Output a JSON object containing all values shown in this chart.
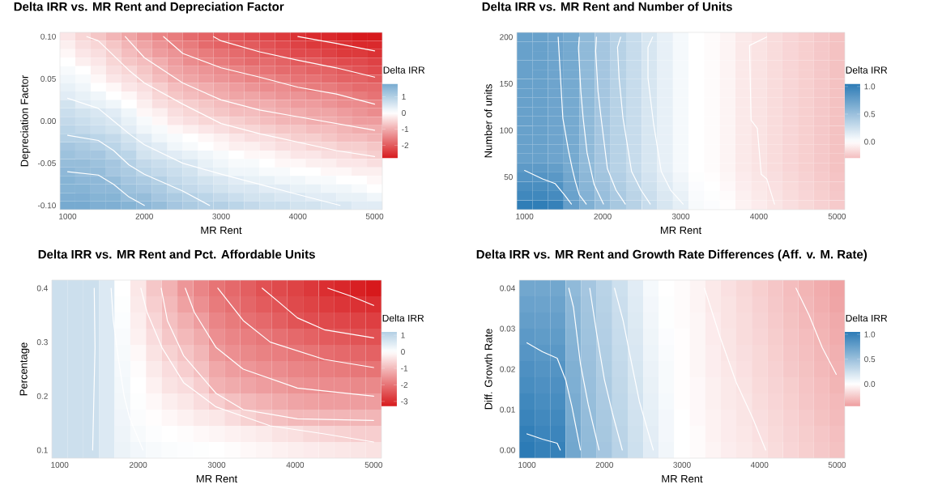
{
  "chart_data": [
    {
      "type": "heatmap",
      "title": "Delta IRR vs. MR Rent and Depreciation Factor",
      "xlabel": "MR Rent",
      "ylabel": "Depreciation Factor",
      "clabel": "Delta IRR",
      "x": [
        1000,
        1200,
        1400,
        1600,
        1800,
        2000,
        2200,
        2400,
        2600,
        2800,
        3000,
        3200,
        3400,
        3600,
        3800,
        4000,
        4200,
        4400,
        4600,
        4800,
        5000
      ],
      "xlim": [
        900,
        5100
      ],
      "ylim": [
        -0.105,
        0.105
      ],
      "xticks": [
        1000,
        2000,
        3000,
        4000,
        5000
      ],
      "yticks": [
        {
          "value": -0.1,
          "label": "-0.10"
        },
        {
          "value": -0.05,
          "label": "-0.05"
        },
        {
          "value": 0,
          "label": "0.00"
        },
        {
          "value": 0.05,
          "label": "0.05"
        },
        {
          "value": 0.1,
          "label": "0.10"
        }
      ],
      "clim": [
        -2.8,
        1.8
      ],
      "cticks": [
        -2,
        -1,
        0,
        1
      ],
      "cells": [
        [
          -0.3,
          -0.5,
          -0.7,
          -0.9,
          -1.1,
          -1.3,
          -1.5,
          -1.6,
          -1.8,
          -1.9,
          -2.0,
          -2.1,
          -2.2,
          -2.3,
          -2.4,
          -2.5,
          -2.6,
          -2.6,
          -2.7,
          -2.8,
          -2.8
        ],
        [
          -0.2,
          -0.4,
          -0.5,
          -0.7,
          -0.9,
          -1.1,
          -1.3,
          -1.5,
          -1.6,
          -1.8,
          -1.9,
          -2.0,
          -2.0,
          -2.1,
          -2.2,
          -2.3,
          -2.4,
          -2.4,
          -2.5,
          -2.6,
          -2.6
        ],
        [
          -0.1,
          -0.3,
          -0.4,
          -0.6,
          -0.8,
          -1.0,
          -1.2,
          -1.3,
          -1.5,
          -1.6,
          -1.7,
          -1.8,
          -1.9,
          -2.0,
          -2.1,
          -2.2,
          -2.2,
          -2.3,
          -2.4,
          -2.4,
          -2.5
        ],
        [
          0.0,
          -0.2,
          -0.3,
          -0.5,
          -0.7,
          -0.8,
          -1.0,
          -1.2,
          -1.4,
          -1.5,
          -1.6,
          -1.7,
          -1.8,
          -1.8,
          -1.9,
          -2.0,
          -2.0,
          -2.1,
          -2.2,
          -2.2,
          -2.3
        ],
        [
          0.1,
          0.0,
          -0.2,
          -0.4,
          -0.5,
          -0.7,
          -0.9,
          -1.1,
          -1.2,
          -1.3,
          -1.4,
          -1.5,
          -1.6,
          -1.7,
          -1.8,
          -1.8,
          -1.9,
          -1.9,
          -2.0,
          -2.1,
          -2.2
        ],
        [
          0.2,
          0.1,
          -0.1,
          -0.3,
          -0.4,
          -0.6,
          -0.8,
          -1.0,
          -1.1,
          -1.2,
          -1.3,
          -1.4,
          -1.5,
          -1.5,
          -1.6,
          -1.7,
          -1.7,
          -1.8,
          -1.9,
          -1.9,
          -2.0
        ],
        [
          0.3,
          0.2,
          0.0,
          -0.1,
          -0.3,
          -0.4,
          -0.6,
          -0.8,
          -0.9,
          -1.0,
          -1.1,
          -1.2,
          -1.3,
          -1.4,
          -1.4,
          -1.5,
          -1.6,
          -1.6,
          -1.7,
          -1.8,
          -1.8
        ],
        [
          0.4,
          0.3,
          0.2,
          0.0,
          -0.1,
          -0.3,
          -0.5,
          -0.7,
          -0.8,
          -0.9,
          -1.0,
          -1.1,
          -1.1,
          -1.2,
          -1.3,
          -1.3,
          -1.4,
          -1.4,
          -1.5,
          -1.6,
          -1.7
        ],
        [
          0.6,
          0.4,
          0.3,
          0.2,
          0.0,
          -0.2,
          -0.4,
          -0.5,
          -0.6,
          -0.7,
          -0.8,
          -0.9,
          -1.0,
          -1.0,
          -1.1,
          -1.2,
          -1.2,
          -1.3,
          -1.4,
          -1.4,
          -1.5
        ],
        [
          0.7,
          0.6,
          0.5,
          0.4,
          0.2,
          -0.1,
          -0.2,
          -0.4,
          -0.5,
          -0.6,
          -0.7,
          -0.8,
          -0.8,
          -0.9,
          -1.0,
          -1.0,
          -1.1,
          -1.1,
          -1.2,
          -1.3,
          -1.4
        ],
        [
          0.8,
          0.7,
          0.6,
          0.5,
          0.3,
          0.1,
          -0.1,
          -0.3,
          -0.4,
          -0.5,
          -0.5,
          -0.6,
          -0.7,
          -0.8,
          -0.9,
          -0.9,
          -1.0,
          -1.0,
          -1.1,
          -1.2,
          -1.2
        ],
        [
          0.9,
          0.8,
          0.7,
          0.6,
          0.4,
          0.2,
          0.1,
          -0.1,
          -0.2,
          -0.3,
          -0.4,
          -0.5,
          -0.5,
          -0.6,
          -0.7,
          -0.7,
          -0.8,
          -0.8,
          -0.9,
          -1.0,
          -1.0
        ],
        [
          1.0,
          1.0,
          0.9,
          0.8,
          0.6,
          0.4,
          0.2,
          0.1,
          0.0,
          -0.1,
          -0.2,
          -0.3,
          -0.4,
          -0.4,
          -0.5,
          -0.6,
          -0.6,
          -0.7,
          -0.8,
          -0.8,
          -0.9
        ],
        [
          1.2,
          1.1,
          1.0,
          0.9,
          0.7,
          0.5,
          0.4,
          0.2,
          0.1,
          0.0,
          -0.1,
          -0.2,
          -0.2,
          -0.3,
          -0.4,
          -0.4,
          -0.5,
          -0.5,
          -0.6,
          -0.6,
          -0.7
        ],
        [
          1.3,
          1.2,
          1.2,
          1.0,
          0.9,
          0.6,
          0.5,
          0.4,
          0.3,
          0.2,
          0.1,
          0.0,
          -0.1,
          -0.1,
          -0.2,
          -0.3,
          -0.3,
          -0.4,
          -0.4,
          -0.5,
          -0.6
        ],
        [
          1.4,
          1.4,
          1.3,
          1.2,
          1.0,
          0.8,
          0.7,
          0.6,
          0.5,
          0.3,
          0.2,
          0.1,
          0.1,
          0.0,
          -0.1,
          -0.1,
          -0.2,
          -0.2,
          -0.3,
          -0.3,
          -0.4
        ],
        [
          1.5,
          1.4,
          1.4,
          1.2,
          1.1,
          0.9,
          0.8,
          0.7,
          0.6,
          0.4,
          0.3,
          0.2,
          0.2,
          0.1,
          0.1,
          0.0,
          0.0,
          -0.1,
          -0.1,
          -0.2,
          -0.2
        ],
        [
          1.6,
          1.5,
          1.5,
          1.4,
          1.2,
          1.1,
          1.0,
          0.8,
          0.7,
          0.6,
          0.5,
          0.4,
          0.3,
          0.3,
          0.2,
          0.2,
          0.1,
          0.1,
          0.0,
          0.0,
          -0.1
        ],
        [
          1.6,
          1.6,
          1.5,
          1.5,
          1.3,
          1.2,
          1.1,
          0.9,
          0.8,
          0.7,
          0.6,
          0.5,
          0.5,
          0.4,
          0.4,
          0.3,
          0.3,
          0.2,
          0.2,
          0.1,
          0.0
        ],
        [
          1.7,
          1.7,
          1.6,
          1.6,
          1.4,
          1.4,
          1.2,
          1.1,
          1.0,
          0.9,
          0.8,
          0.7,
          0.6,
          0.6,
          0.5,
          0.5,
          0.4,
          0.4,
          0.3,
          0.3,
          0.2
        ],
        [
          1.8,
          1.8,
          1.7,
          1.7,
          1.6,
          1.5,
          1.4,
          1.2,
          1.1,
          1.0,
          1.0,
          0.9,
          0.8,
          0.7,
          0.7,
          0.6,
          0.6,
          0.5,
          0.5,
          0.4,
          0.4
        ]
      ],
      "series": [
        {
          "type": "line",
          "color": "#ffffff",
          "x": [
            4000,
            4500,
            5000
          ],
          "values": [
            0.1,
            0.092,
            0.083
          ]
        },
        {
          "type": "line",
          "color": "#ffffff",
          "x": [
            2900,
            3000,
            3500,
            4000,
            4500,
            5000
          ],
          "values": [
            0.1,
            0.095,
            0.082,
            0.072,
            0.063,
            0.052
          ]
        },
        {
          "type": "line",
          "color": "#ffffff",
          "x": [
            2250,
            2500,
            3000,
            3500,
            4000,
            4500,
            5000
          ],
          "values": [
            0.1,
            0.08,
            0.063,
            0.052,
            0.04,
            0.032,
            0.02
          ]
        },
        {
          "type": "line",
          "color": "#ffffff",
          "x": [
            1750,
            2000,
            2500,
            3000,
            3500,
            4000,
            4500,
            5000
          ],
          "values": [
            0.1,
            0.075,
            0.045,
            0.025,
            0.013,
            0.005,
            -0.003,
            -0.011
          ]
        },
        {
          "type": "line",
          "color": "#ffffff",
          "x": [
            1250,
            1400,
            1800,
            2000,
            2500,
            3000,
            3500,
            4000,
            4500,
            5000
          ],
          "values": [
            0.1,
            0.095,
            0.06,
            0.045,
            0.02,
            -0.003,
            -0.015,
            -0.025,
            -0.035,
            -0.042
          ]
        },
        {
          "type": "line",
          "color": "#ffffff",
          "x": [
            1000,
            1400,
            1600,
            1800,
            2000,
            2500,
            3000,
            3500,
            4000,
            4550
          ],
          "values": [
            0.027,
            0.015,
            0.0,
            -0.015,
            -0.028,
            -0.05,
            -0.063,
            -0.075,
            -0.087,
            -0.1
          ]
        },
        {
          "type": "line",
          "color": "#ffffff",
          "x": [
            1000,
            1400,
            1600,
            1800,
            2000,
            2500,
            2850
          ],
          "values": [
            -0.017,
            -0.023,
            -0.035,
            -0.052,
            -0.063,
            -0.083,
            -0.1
          ]
        },
        {
          "type": "line",
          "color": "#ffffff",
          "x": [
            1000,
            1400,
            1600,
            1800,
            2000
          ],
          "values": [
            -0.06,
            -0.064,
            -0.075,
            -0.09,
            -0.1
          ]
        }
      ]
    },
    {
      "type": "heatmap",
      "title": "Delta IRR vs. MR Rent and Number of Units",
      "xlabel": "MR Rent",
      "ylabel": "Number of units",
      "clabel": "Delta IRR",
      "x": [
        1000,
        1200,
        1400,
        1600,
        1800,
        2000,
        2200,
        2400,
        2600,
        2800,
        3000,
        3200,
        3400,
        3600,
        3800,
        4000,
        4200,
        4400,
        4600,
        4800,
        5000
      ],
      "xlim": [
        900,
        5100
      ],
      "ylim": [
        15,
        205
      ],
      "xticks": [
        1000,
        2000,
        3000,
        4000,
        5000
      ],
      "yticks": [
        50,
        100,
        150,
        200
      ],
      "clim": [
        -0.3,
        1.05
      ],
      "cticks": [
        {
          "value": 0,
          "label": "0.0"
        },
        {
          "value": 0.5,
          "label": "0.5"
        },
        {
          "value": 1,
          "label": "1.0"
        }
      ],
      "cells": [
        [
          0.75,
          0.75,
          0.72,
          0.68,
          0.55,
          0.45,
          0.36,
          0.28,
          0.2,
          0.12,
          0.05,
          0.0,
          -0.02,
          -0.05,
          -0.1,
          -0.13,
          -0.16,
          -0.19,
          -0.22,
          -0.25,
          -0.28
        ],
        [
          0.75,
          0.75,
          0.72,
          0.68,
          0.55,
          0.45,
          0.36,
          0.28,
          0.2,
          0.12,
          0.05,
          0.0,
          -0.02,
          -0.05,
          -0.1,
          -0.13,
          -0.16,
          -0.19,
          -0.22,
          -0.25,
          -0.28
        ],
        [
          0.75,
          0.75,
          0.72,
          0.68,
          0.55,
          0.45,
          0.36,
          0.28,
          0.2,
          0.12,
          0.05,
          0.0,
          -0.02,
          -0.05,
          -0.1,
          -0.13,
          -0.16,
          -0.19,
          -0.22,
          -0.25,
          -0.28
        ],
        [
          0.75,
          0.75,
          0.72,
          0.68,
          0.55,
          0.45,
          0.36,
          0.28,
          0.2,
          0.12,
          0.05,
          0.0,
          -0.02,
          -0.05,
          -0.1,
          -0.13,
          -0.16,
          -0.19,
          -0.22,
          -0.25,
          -0.28
        ],
        [
          0.75,
          0.75,
          0.72,
          0.68,
          0.55,
          0.45,
          0.36,
          0.28,
          0.2,
          0.12,
          0.05,
          0.0,
          -0.02,
          -0.05,
          -0.1,
          -0.13,
          -0.16,
          -0.19,
          -0.22,
          -0.25,
          -0.28
        ],
        [
          0.75,
          0.75,
          0.72,
          0.68,
          0.55,
          0.45,
          0.36,
          0.28,
          0.2,
          0.12,
          0.05,
          0.0,
          -0.02,
          -0.05,
          -0.1,
          -0.13,
          -0.16,
          -0.19,
          -0.22,
          -0.25,
          -0.28
        ],
        [
          0.75,
          0.75,
          0.72,
          0.68,
          0.55,
          0.45,
          0.36,
          0.28,
          0.2,
          0.12,
          0.05,
          0.0,
          -0.02,
          -0.05,
          -0.1,
          -0.13,
          -0.16,
          -0.19,
          -0.22,
          -0.25,
          -0.28
        ],
        [
          0.75,
          0.75,
          0.72,
          0.68,
          0.55,
          0.45,
          0.36,
          0.28,
          0.2,
          0.12,
          0.05,
          0.0,
          -0.02,
          -0.05,
          -0.1,
          -0.13,
          -0.16,
          -0.19,
          -0.22,
          -0.25,
          -0.28
        ],
        [
          0.75,
          0.75,
          0.72,
          0.68,
          0.55,
          0.45,
          0.36,
          0.28,
          0.2,
          0.12,
          0.05,
          0.0,
          -0.02,
          -0.05,
          -0.1,
          -0.13,
          -0.16,
          -0.19,
          -0.22,
          -0.25,
          -0.28
        ],
        [
          0.75,
          0.75,
          0.72,
          0.68,
          0.55,
          0.45,
          0.36,
          0.28,
          0.2,
          0.12,
          0.05,
          0.0,
          -0.02,
          -0.05,
          -0.1,
          -0.13,
          -0.16,
          -0.19,
          -0.22,
          -0.25,
          -0.28
        ],
        [
          0.75,
          0.75,
          0.72,
          0.68,
          0.55,
          0.45,
          0.36,
          0.28,
          0.2,
          0.12,
          0.05,
          0.0,
          -0.02,
          -0.05,
          -0.1,
          -0.13,
          -0.16,
          -0.19,
          -0.22,
          -0.25,
          -0.28
        ],
        [
          0.75,
          0.75,
          0.72,
          0.68,
          0.55,
          0.45,
          0.36,
          0.28,
          0.2,
          0.12,
          0.05,
          0.0,
          -0.02,
          -0.05,
          -0.1,
          -0.13,
          -0.16,
          -0.19,
          -0.22,
          -0.25,
          -0.28
        ],
        [
          0.75,
          0.75,
          0.72,
          0.68,
          0.55,
          0.45,
          0.36,
          0.28,
          0.2,
          0.12,
          0.05,
          0.0,
          -0.02,
          -0.05,
          -0.1,
          -0.13,
          -0.16,
          -0.19,
          -0.22,
          -0.25,
          -0.28
        ],
        [
          0.75,
          0.75,
          0.72,
          0.68,
          0.55,
          0.45,
          0.36,
          0.28,
          0.2,
          0.12,
          0.05,
          0.0,
          -0.02,
          -0.05,
          -0.1,
          -0.13,
          -0.16,
          -0.19,
          -0.22,
          -0.25,
          -0.28
        ],
        [
          0.8,
          0.8,
          0.77,
          0.68,
          0.55,
          0.45,
          0.36,
          0.28,
          0.2,
          0.12,
          0.05,
          0.0,
          -0.02,
          -0.05,
          -0.1,
          -0.13,
          -0.16,
          -0.19,
          -0.22,
          -0.25,
          -0.28
        ],
        [
          0.85,
          0.85,
          0.82,
          0.7,
          0.57,
          0.47,
          0.38,
          0.3,
          0.22,
          0.14,
          0.07,
          0.01,
          -0.01,
          -0.04,
          -0.09,
          -0.12,
          -0.15,
          -0.18,
          -0.21,
          -0.24,
          -0.27
        ],
        [
          0.9,
          0.9,
          0.87,
          0.72,
          0.59,
          0.49,
          0.4,
          0.32,
          0.24,
          0.16,
          0.09,
          0.02,
          0.0,
          -0.03,
          -0.08,
          -0.11,
          -0.14,
          -0.17,
          -0.2,
          -0.23,
          -0.26
        ],
        [
          0.95,
          0.95,
          0.92,
          0.74,
          0.61,
          0.51,
          0.42,
          0.34,
          0.26,
          0.18,
          0.11,
          0.03,
          0.01,
          -0.02,
          -0.07,
          -0.1,
          -0.13,
          -0.16,
          -0.19,
          -0.22,
          -0.25
        ],
        [
          1.03,
          1.03,
          1.0,
          0.76,
          0.63,
          0.53,
          0.44,
          0.36,
          0.28,
          0.2,
          0.13,
          0.04,
          0.02,
          -0.01,
          -0.06,
          -0.09,
          -0.12,
          -0.15,
          -0.18,
          -0.21,
          -0.24
        ]
      ],
      "series": [
        {
          "type": "line",
          "color": "#ffffff",
          "x": [
            1000,
            1230,
            1390,
            1510,
            1600
          ],
          "values": [
            57,
            48,
            43,
            31,
            21
          ]
        },
        {
          "type": "line",
          "color": "#ffffff",
          "x": [
            1430,
            1450,
            1490,
            1560,
            1610,
            1650,
            1700,
            1790
          ],
          "values": [
            200,
            171,
            113,
            79,
            59,
            45,
            31,
            21
          ]
        },
        {
          "type": "line",
          "color": "#ffffff",
          "x": [
            1700,
            1690,
            1720,
            1750,
            1800,
            1890,
            2010
          ],
          "values": [
            200,
            188,
            142,
            113,
            76,
            42,
            21
          ]
        },
        {
          "type": "line",
          "color": "#ffffff",
          "x": [
            1920,
            1910,
            1940,
            1980,
            2060,
            2170,
            2290
          ],
          "values": [
            200,
            185,
            142,
            113,
            59,
            36,
            21
          ]
        },
        {
          "type": "line",
          "color": "#ffffff",
          "x": [
            2230,
            2190,
            2210,
            2260,
            2370,
            2490,
            2610
          ],
          "values": [
            200,
            189,
            156,
            113,
            56,
            36,
            21
          ]
        },
        {
          "type": "line",
          "color": "#ffffff",
          "x": [
            2640,
            2580,
            2580,
            2650,
            2750,
            2870,
            3030
          ],
          "values": [
            200,
            189,
            156,
            108,
            56,
            36,
            21
          ]
        },
        {
          "type": "line",
          "color": "#ffffff",
          "x": [
            4100,
            3880,
            3900,
            3980,
            4030,
            4100,
            4200
          ],
          "values": [
            200,
            191,
            111,
            102,
            53,
            48,
            21
          ]
        }
      ]
    },
    {
      "type": "heatmap",
      "title": "Delta IRR vs. MR Rent and Pct. Affordable Units",
      "xlabel": "MR Rent",
      "ylabel": "Percentage",
      "clabel": "Delta IRR",
      "x": [
        1000,
        1200,
        1400,
        1600,
        1800,
        2000,
        2200,
        2400,
        2600,
        2800,
        3000,
        3200,
        3400,
        3600,
        3800,
        4000,
        4200,
        4400,
        4600,
        4800,
        5000
      ],
      "xlim": [
        900,
        5100
      ],
      "ylim": [
        0.085,
        0.415
      ],
      "xticks": [
        1000,
        2000,
        3000,
        4000,
        5000
      ],
      "yticks": [
        0.1,
        0.2,
        0.3,
        0.4
      ],
      "clim": [
        -3.3,
        1.2
      ],
      "cticks": [
        -3,
        -2,
        -1,
        0,
        1
      ],
      "cells": [
        [
          0.8,
          0.8,
          0.8,
          0.55,
          0.0,
          -0.35,
          -0.8,
          -1.1,
          -1.5,
          -1.75,
          -2.0,
          -2.15,
          -2.3,
          -2.5,
          -2.6,
          -2.7,
          -2.85,
          -3.0,
          -3.1,
          -3.2,
          -3.3
        ],
        [
          0.8,
          0.8,
          0.8,
          0.55,
          0.03,
          -0.3,
          -0.7,
          -1.0,
          -1.35,
          -1.6,
          -1.9,
          -2.05,
          -2.2,
          -2.35,
          -2.45,
          -2.6,
          -2.7,
          -2.8,
          -2.9,
          -2.95,
          -3.0
        ],
        [
          0.8,
          0.8,
          0.8,
          0.55,
          0.06,
          -0.25,
          -0.6,
          -0.9,
          -1.15,
          -1.4,
          -1.75,
          -1.9,
          -2.05,
          -2.15,
          -2.3,
          -2.45,
          -2.55,
          -2.6,
          -2.65,
          -2.7,
          -2.75
        ],
        [
          0.8,
          0.8,
          0.8,
          0.55,
          0.09,
          -0.2,
          -0.5,
          -0.8,
          -1.0,
          -1.2,
          -1.6,
          -1.75,
          -1.85,
          -1.95,
          -2.05,
          -2.15,
          -2.25,
          -2.35,
          -2.4,
          -2.45,
          -2.5
        ],
        [
          0.8,
          0.8,
          0.8,
          0.55,
          0.12,
          -0.1,
          -0.4,
          -0.65,
          -0.85,
          -1.05,
          -1.45,
          -1.6,
          -1.7,
          -1.8,
          -1.85,
          -1.95,
          -2.0,
          -2.1,
          -2.15,
          -2.2,
          -2.25
        ],
        [
          0.8,
          0.8,
          0.8,
          0.55,
          0.15,
          -0.05,
          -0.3,
          -0.5,
          -0.7,
          -0.9,
          -1.25,
          -1.4,
          -1.5,
          -1.6,
          -1.65,
          -1.75,
          -1.8,
          -1.85,
          -1.9,
          -1.95,
          -2.0
        ],
        [
          0.8,
          0.8,
          0.8,
          0.55,
          0.18,
          0.0,
          -0.2,
          -0.4,
          -0.5,
          -0.7,
          -1.1,
          -1.2,
          -1.3,
          -1.4,
          -1.45,
          -1.55,
          -1.6,
          -1.65,
          -1.65,
          -1.7,
          -1.7
        ],
        [
          0.8,
          0.8,
          0.8,
          0.55,
          0.21,
          0.03,
          -0.1,
          -0.25,
          -0.35,
          -0.5,
          -0.7,
          -0.9,
          -1.0,
          -1.1,
          -1.2,
          -1.3,
          -1.35,
          -1.4,
          -1.4,
          -1.4,
          -1.4
        ],
        [
          0.8,
          0.8,
          0.8,
          0.55,
          0.24,
          0.07,
          -0.03,
          -0.12,
          -0.2,
          -0.3,
          -0.35,
          -0.5,
          -0.65,
          -0.8,
          -0.9,
          -1.0,
          -1.0,
          -1.05,
          -1.05,
          -1.05,
          -1.05
        ],
        [
          0.8,
          0.8,
          0.8,
          0.55,
          0.27,
          0.12,
          0.05,
          0.0,
          -0.05,
          -0.1,
          -0.15,
          -0.2,
          -0.25,
          -0.3,
          -0.4,
          -0.45,
          -0.55,
          -0.6,
          -0.65,
          -0.7,
          -0.7
        ],
        [
          0.8,
          0.8,
          0.8,
          0.55,
          0.3,
          0.2,
          0.12,
          0.08,
          0.05,
          0.03,
          0.0,
          -0.05,
          -0.1,
          -0.15,
          -0.2,
          -0.25,
          -0.28,
          -0.32,
          -0.35,
          -0.38,
          -0.42
        ]
      ],
      "series": [
        {
          "type": "line",
          "color": "#ffffff",
          "x": [
            1440,
            1450,
            1420
          ],
          "values": [
            0.4,
            0.29,
            0.1
          ]
        },
        {
          "type": "line",
          "color": "#ffffff",
          "x": [
            1655,
            1683,
            1752,
            1821,
            1890,
            2062
          ],
          "values": [
            0.4,
            0.34,
            0.265,
            0.2,
            0.16,
            0.1
          ]
        },
        {
          "type": "line",
          "color": "#ffffff",
          "x": [
            2034,
            2114,
            2303,
            2579,
            2993,
            3683,
            4372,
            5000
          ],
          "values": [
            0.4,
            0.355,
            0.29,
            0.225,
            0.18,
            0.145,
            0.13,
            0.115
          ]
        },
        {
          "type": "line",
          "color": "#ffffff",
          "x": [
            2293,
            2372,
            2579,
            2993,
            3338,
            4028,
            5000
          ],
          "values": [
            0.4,
            0.34,
            0.275,
            0.205,
            0.175,
            0.158,
            0.155
          ]
        },
        {
          "type": "line",
          "color": "#ffffff",
          "x": [
            2600,
            2717,
            2993,
            3338,
            4028,
            5000
          ],
          "values": [
            0.4,
            0.355,
            0.29,
            0.25,
            0.215,
            0.2
          ]
        },
        {
          "type": "line",
          "color": "#ffffff",
          "x": [
            3014,
            3338,
            3683,
            4372,
            5000
          ],
          "values": [
            0.4,
            0.34,
            0.3,
            0.268,
            0.253
          ]
        },
        {
          "type": "line",
          "color": "#ffffff",
          "x": [
            3580,
            3786,
            4028,
            4372,
            5000
          ],
          "values": [
            0.4,
            0.375,
            0.345,
            0.323,
            0.308
          ]
        },
        {
          "type": "line",
          "color": "#ffffff",
          "x": [
            4417,
            4717,
            5000
          ],
          "values": [
            0.4,
            0.385,
            0.368
          ]
        }
      ]
    },
    {
      "type": "heatmap",
      "title": "Delta IRR vs. MR Rent and Growth Rate Differences (Aff. v. M. Rate)",
      "xlabel": "MR Rent",
      "ylabel": "Diff. Growth Rate",
      "clabel": "Delta IRR",
      "x": [
        1000,
        1200,
        1400,
        1600,
        1800,
        2000,
        2200,
        2400,
        2600,
        2800,
        3000,
        3200,
        3400,
        3600,
        3800,
        4000,
        4200,
        4400,
        4600,
        4800,
        5000
      ],
      "xlim": [
        900,
        5100
      ],
      "ylim": [
        -0.002,
        0.042
      ],
      "xticks": [
        1000,
        2000,
        3000,
        4000,
        5000
      ],
      "yticks": [
        {
          "value": 0,
          "label": "0.00"
        },
        {
          "value": 0.01,
          "label": "0.01"
        },
        {
          "value": 0.02,
          "label": "0.02"
        },
        {
          "value": 0.03,
          "label": "0.03"
        },
        {
          "value": 0.04,
          "label": "0.04"
        }
      ],
      "clim": [
        -0.45,
        1.05
      ],
      "cticks": [
        {
          "value": 0,
          "label": "0.0"
        },
        {
          "value": 0.5,
          "label": "0.5"
        },
        {
          "value": 1,
          "label": "1.0"
        }
      ],
      "cells": [
        [
          0.7,
          0.7,
          0.7,
          0.55,
          0.45,
          0.35,
          0.25,
          0.15,
          0.05,
          0.0,
          -0.02,
          -0.05,
          -0.1,
          -0.14,
          -0.18,
          -0.22,
          -0.26,
          -0.3,
          -0.34,
          -0.38,
          -0.42
        ],
        [
          0.74,
          0.73,
          0.73,
          0.57,
          0.46,
          0.36,
          0.26,
          0.16,
          0.06,
          0.01,
          -0.02,
          -0.05,
          -0.1,
          -0.13,
          -0.17,
          -0.21,
          -0.25,
          -0.29,
          -0.33,
          -0.37,
          -0.41
        ],
        [
          0.77,
          0.76,
          0.76,
          0.58,
          0.47,
          0.37,
          0.27,
          0.17,
          0.07,
          0.01,
          -0.02,
          -0.04,
          -0.09,
          -0.13,
          -0.16,
          -0.2,
          -0.24,
          -0.28,
          -0.32,
          -0.35,
          -0.39
        ],
        [
          0.81,
          0.79,
          0.79,
          0.6,
          0.48,
          0.38,
          0.28,
          0.18,
          0.08,
          0.02,
          -0.01,
          -0.04,
          -0.09,
          -0.12,
          -0.16,
          -0.19,
          -0.23,
          -0.27,
          -0.3,
          -0.34,
          -0.38
        ],
        [
          0.84,
          0.82,
          0.82,
          0.61,
          0.49,
          0.39,
          0.29,
          0.19,
          0.09,
          0.03,
          -0.01,
          -0.04,
          -0.08,
          -0.12,
          -0.15,
          -0.18,
          -0.22,
          -0.26,
          -0.29,
          -0.33,
          -0.36
        ],
        [
          0.88,
          0.85,
          0.85,
          0.63,
          0.5,
          0.4,
          0.3,
          0.2,
          0.1,
          0.04,
          -0.01,
          -0.04,
          -0.08,
          -0.11,
          -0.14,
          -0.18,
          -0.21,
          -0.25,
          -0.28,
          -0.32,
          -0.35
        ],
        [
          0.91,
          0.88,
          0.88,
          0.64,
          0.51,
          0.41,
          0.31,
          0.21,
          0.11,
          0.04,
          -0.01,
          -0.03,
          -0.07,
          -0.1,
          -0.13,
          -0.17,
          -0.2,
          -0.23,
          -0.27,
          -0.3,
          -0.34
        ],
        [
          0.95,
          0.91,
          0.91,
          0.66,
          0.52,
          0.42,
          0.32,
          0.22,
          0.12,
          0.05,
          -0.01,
          -0.03,
          -0.07,
          -0.1,
          -0.12,
          -0.16,
          -0.19,
          -0.22,
          -0.26,
          -0.29,
          -0.32
        ],
        [
          0.98,
          0.94,
          0.94,
          0.67,
          0.53,
          0.43,
          0.33,
          0.23,
          0.13,
          0.06,
          0.0,
          -0.03,
          -0.06,
          -0.09,
          -0.12,
          -0.15,
          -0.18,
          -0.21,
          -0.24,
          -0.28,
          -0.31
        ],
        [
          1.02,
          0.97,
          0.97,
          0.69,
          0.54,
          0.44,
          0.34,
          0.24,
          0.14,
          0.06,
          0.0,
          -0.02,
          -0.06,
          -0.09,
          -0.11,
          -0.14,
          -0.17,
          -0.2,
          -0.23,
          -0.26,
          -0.29
        ],
        [
          1.05,
          1.0,
          1.0,
          0.7,
          0.55,
          0.45,
          0.35,
          0.25,
          0.15,
          0.07,
          0.0,
          -0.02,
          -0.05,
          -0.08,
          -0.1,
          -0.13,
          -0.16,
          -0.19,
          -0.22,
          -0.25,
          -0.28
        ]
      ],
      "series": [
        {
          "type": "line",
          "color": "#ffffff",
          "x": [
            1000,
            1200,
            1390,
            1500,
            1580,
            1690
          ],
          "values": [
            0.0265,
            0.0243,
            0.0227,
            0.0173,
            0.0107,
            0.0
          ]
        },
        {
          "type": "line",
          "color": "#ffffff",
          "x": [
            1000,
            1200,
            1390,
            1430
          ],
          "values": [
            0.004,
            0.0027,
            0.0017,
            0.0
          ]
        },
        {
          "type": "line",
          "color": "#ffffff",
          "x": [
            1540,
            1600,
            1690,
            1790,
            1930
          ],
          "values": [
            0.04,
            0.0353,
            0.0213,
            0.0113,
            0.0
          ]
        },
        {
          "type": "line",
          "color": "#ffffff",
          "x": [
            1810,
            1900,
            2000,
            2100,
            2230
          ],
          "values": [
            0.04,
            0.0287,
            0.0173,
            0.0093,
            0.0
          ]
        },
        {
          "type": "line",
          "color": "#ffffff",
          "x": [
            2130,
            2240,
            2330,
            2450,
            2630
          ],
          "values": [
            0.04,
            0.032,
            0.0233,
            0.012,
            0.0
          ]
        },
        {
          "type": "line",
          "color": "#ffffff",
          "x": [
            3290,
            3490,
            3700,
            3910,
            4080
          ],
          "values": [
            0.04,
            0.028,
            0.0167,
            0.008,
            0.0
          ]
        },
        {
          "type": "line",
          "color": "#ffffff",
          "x": [
            4470,
            4640,
            4810,
            4990
          ],
          "values": [
            0.04,
            0.0333,
            0.0253,
            0.0187
          ]
        }
      ]
    }
  ]
}
